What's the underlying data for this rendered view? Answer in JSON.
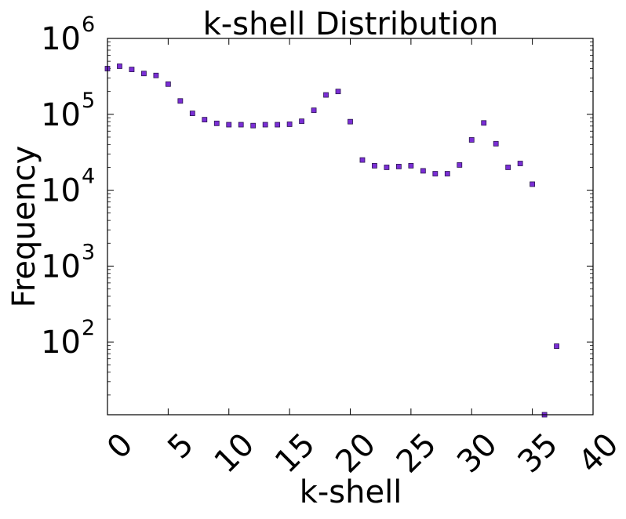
{
  "chart_data": {
    "type": "scatter",
    "title": "k-shell Distribution",
    "xlabel": "k-shell",
    "ylabel": "Frequency",
    "x_scale": "linear",
    "y_scale": "log",
    "xlim": [
      0,
      40
    ],
    "ylim": [
      11,
      1000000
    ],
    "x_ticks": [
      0,
      5,
      10,
      15,
      20,
      25,
      30,
      35,
      40
    ],
    "x_tick_labels": [
      "0",
      "5",
      "10",
      "15",
      "20",
      "25",
      "30",
      "35",
      "40"
    ],
    "y_ticks": [
      100,
      1000,
      10000,
      100000,
      1000000
    ],
    "y_tick_labels": [
      "10",
      "10",
      "10",
      "10",
      "10"
    ],
    "y_tick_exponents": [
      "2",
      "3",
      "4",
      "5",
      "6"
    ],
    "grid": false,
    "marker": "square",
    "marker_color": "#7b2ed6",
    "marker_edge_color": "#2b1650",
    "x": [
      0,
      1,
      2,
      3,
      4,
      5,
      6,
      7,
      8,
      9,
      10,
      11,
      12,
      13,
      14,
      15,
      16,
      17,
      18,
      19,
      20,
      21,
      22,
      23,
      24,
      25,
      26,
      27,
      28,
      29,
      30,
      31,
      32,
      33,
      34,
      35,
      36,
      37
    ],
    "y": [
      400000,
      430000,
      390000,
      345000,
      325000,
      250000,
      150000,
      103000,
      85000,
      76000,
      73000,
      73000,
      71000,
      73000,
      73000,
      74000,
      81000,
      113000,
      180000,
      200000,
      80000,
      25000,
      21000,
      20000,
      20500,
      21000,
      18000,
      16500,
      16500,
      21500,
      46000,
      77000,
      41000,
      20000,
      22500,
      12000,
      11,
      88
    ]
  }
}
